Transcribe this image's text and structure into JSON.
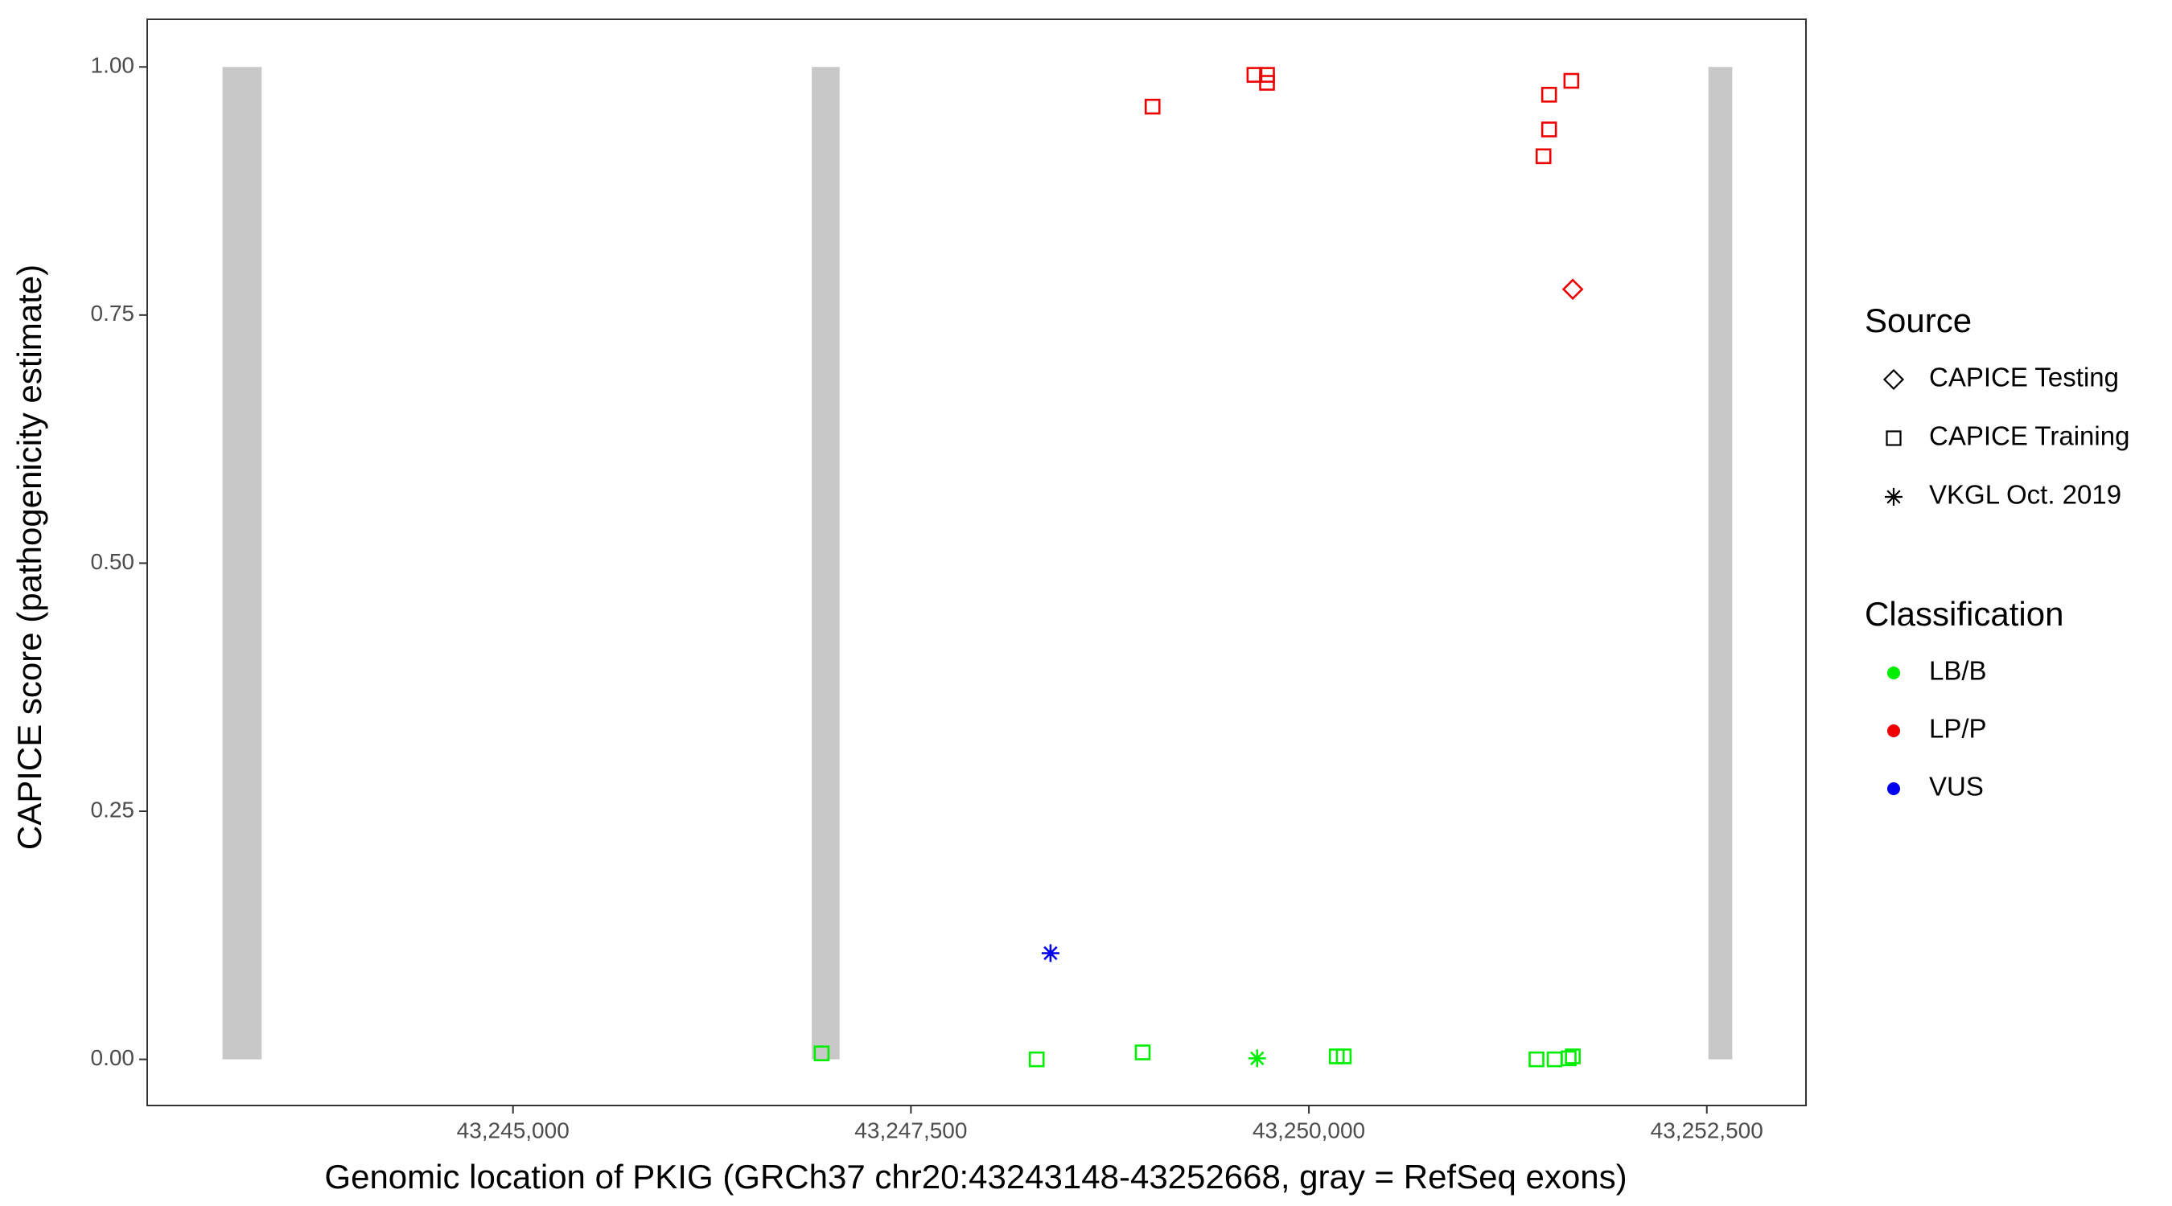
{
  "chart_data": {
    "type": "scatter",
    "xlabel": "Genomic location of PKIG (GRCh37 chr20:43243148-43252668, gray = RefSeq exons)",
    "ylabel": "CAPICE score (pathogenicity estimate)",
    "xlim": [
      43242702,
      43253123
    ],
    "ylim": [
      -0.0465,
      1.048
    ],
    "xticks": [
      {
        "value": 43245000,
        "label": "43,245,000"
      },
      {
        "value": 43247500,
        "label": "43,247,500"
      },
      {
        "value": 43250000,
        "label": "43,250,000"
      },
      {
        "value": 43252500,
        "label": "43,252,500"
      }
    ],
    "yticks": [
      {
        "value": 0,
        "label": "0.00"
      },
      {
        "value": 0.25,
        "label": "0.25"
      },
      {
        "value": 0.5,
        "label": "0.50"
      },
      {
        "value": 0.75,
        "label": "0.75"
      },
      {
        "value": 1,
        "label": "1.00"
      }
    ],
    "exons": [
      {
        "start": 43243175,
        "end": 43243421,
        "bottom": 0,
        "top": 1
      },
      {
        "start": 43246877,
        "end": 43247052,
        "bottom": 0,
        "top": 1
      },
      {
        "start": 43252510,
        "end": 43252660,
        "bottom": 0,
        "top": 1
      }
    ],
    "exon_color": "#c8c8c8",
    "source_legend": {
      "title": "Source",
      "items": [
        {
          "name": "CAPICE Testing",
          "shape": "diamond"
        },
        {
          "name": "CAPICE Training",
          "shape": "square"
        },
        {
          "name": "VKGL Oct. 2019",
          "shape": "asterisk"
        }
      ]
    },
    "class_legend": {
      "title": "Classification",
      "items": [
        {
          "name": "LB/B",
          "color": "#00ee00"
        },
        {
          "name": "LP/P",
          "color": "#ee0000"
        },
        {
          "name": "VUS",
          "color": "#0000ee"
        }
      ]
    },
    "points": {
      "x": [
        43249018,
        43249658,
        43249737,
        43249737,
        43251509,
        43251649,
        43251509,
        43251474,
        43251658,
        43248377,
        43246939,
        43248290,
        43248956,
        43250175,
        43250219,
        43251430,
        43251544,
        43251632,
        43251658,
        43249675
      ],
      "y": [
        0.96,
        0.992,
        0.992,
        0.984,
        0.972,
        0.986,
        0.937,
        0.91,
        0.776,
        0.107,
        0.006,
        0.0,
        0.007,
        0.003,
        0.003,
        0.0,
        0.0,
        0.001,
        0.003,
        0.001
      ],
      "source": [
        "CAPICE Training",
        "CAPICE Training",
        "CAPICE Training",
        "CAPICE Training",
        "CAPICE Training",
        "CAPICE Training",
        "CAPICE Training",
        "CAPICE Training",
        "CAPICE Testing",
        "VKGL Oct. 2019",
        "CAPICE Training",
        "CAPICE Training",
        "CAPICE Training",
        "CAPICE Training",
        "CAPICE Training",
        "CAPICE Training",
        "CAPICE Training",
        "CAPICE Training",
        "CAPICE Training",
        "VKGL Oct. 2019"
      ],
      "classification": [
        "LP/P",
        "LP/P",
        "LP/P",
        "LP/P",
        "LP/P",
        "LP/P",
        "LP/P",
        "LP/P",
        "LP/P",
        "VUS",
        "LB/B",
        "LB/B",
        "LB/B",
        "LB/B",
        "LB/B",
        "LB/B",
        "LB/B",
        "LB/B",
        "LB/B",
        "LB/B"
      ]
    }
  }
}
